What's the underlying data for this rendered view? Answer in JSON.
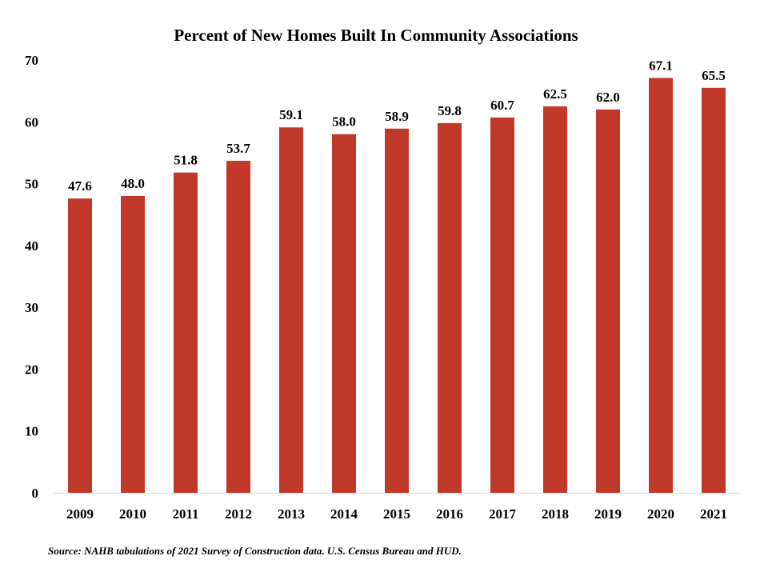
{
  "chart_data": {
    "type": "bar",
    "title": "Percent of New Homes Built In Community Associations",
    "xlabel": "",
    "ylabel": "",
    "categories": [
      "2009",
      "2010",
      "2011",
      "2012",
      "2013",
      "2014",
      "2015",
      "2016",
      "2017",
      "2018",
      "2019",
      "2020",
      "2021"
    ],
    "values": [
      47.6,
      48.0,
      51.8,
      53.7,
      59.1,
      58.0,
      58.9,
      59.8,
      60.7,
      62.5,
      62.0,
      67.1,
      65.5
    ],
    "data_labels": [
      "47.6",
      "48.0",
      "51.8",
      "53.7",
      "59.1",
      "58.0",
      "58.9",
      "59.8",
      "60.7",
      "62.5",
      "62.0",
      "67.1",
      "65.5"
    ],
    "ylim": [
      0,
      70
    ],
    "yticks": [
      "0",
      "10",
      "20",
      "30",
      "40",
      "50",
      "60",
      "70"
    ],
    "grid": false,
    "legend": "none",
    "bar_color": "#C0392B"
  },
  "source": "Source: NAHB tabulations of 2021 Survey of Construction data. U.S. Census Bureau and HUD."
}
